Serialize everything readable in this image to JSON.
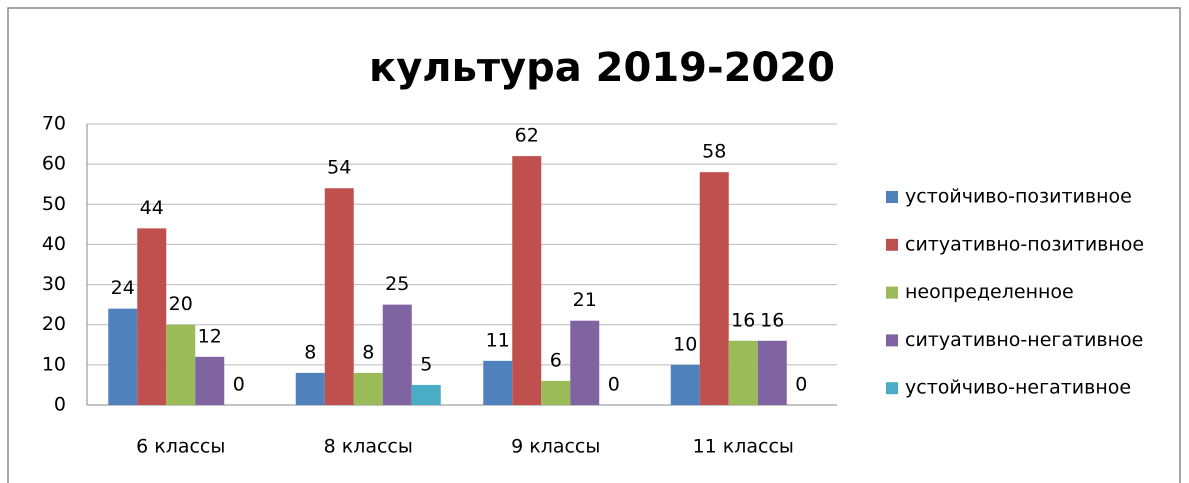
{
  "chart_data": {
    "type": "bar",
    "title": "культура 2019-2020",
    "categories": [
      "6 классы",
      "8 классы",
      "9 классы",
      "11 классы"
    ],
    "series": [
      {
        "name": "устойчиво-позитивное",
        "color": "#4f81bd",
        "values": [
          24,
          8,
          11,
          10
        ]
      },
      {
        "name": "ситуативно-позитивное",
        "color": "#c0504d",
        "values": [
          44,
          54,
          62,
          58
        ]
      },
      {
        "name": "неопределенное",
        "color": "#9bbb59",
        "values": [
          20,
          8,
          6,
          16
        ]
      },
      {
        "name": "ситуативно-негативное",
        "color": "#8064a2",
        "values": [
          12,
          25,
          21,
          16
        ]
      },
      {
        "name": "устойчиво-негативное",
        "color": "#4bacc6",
        "values": [
          0,
          5,
          0,
          0
        ]
      }
    ],
    "ylim": [
      0,
      70
    ],
    "yticks": [
      0,
      10,
      20,
      30,
      40,
      50,
      60,
      70
    ],
    "grid": true,
    "legend": "right"
  }
}
